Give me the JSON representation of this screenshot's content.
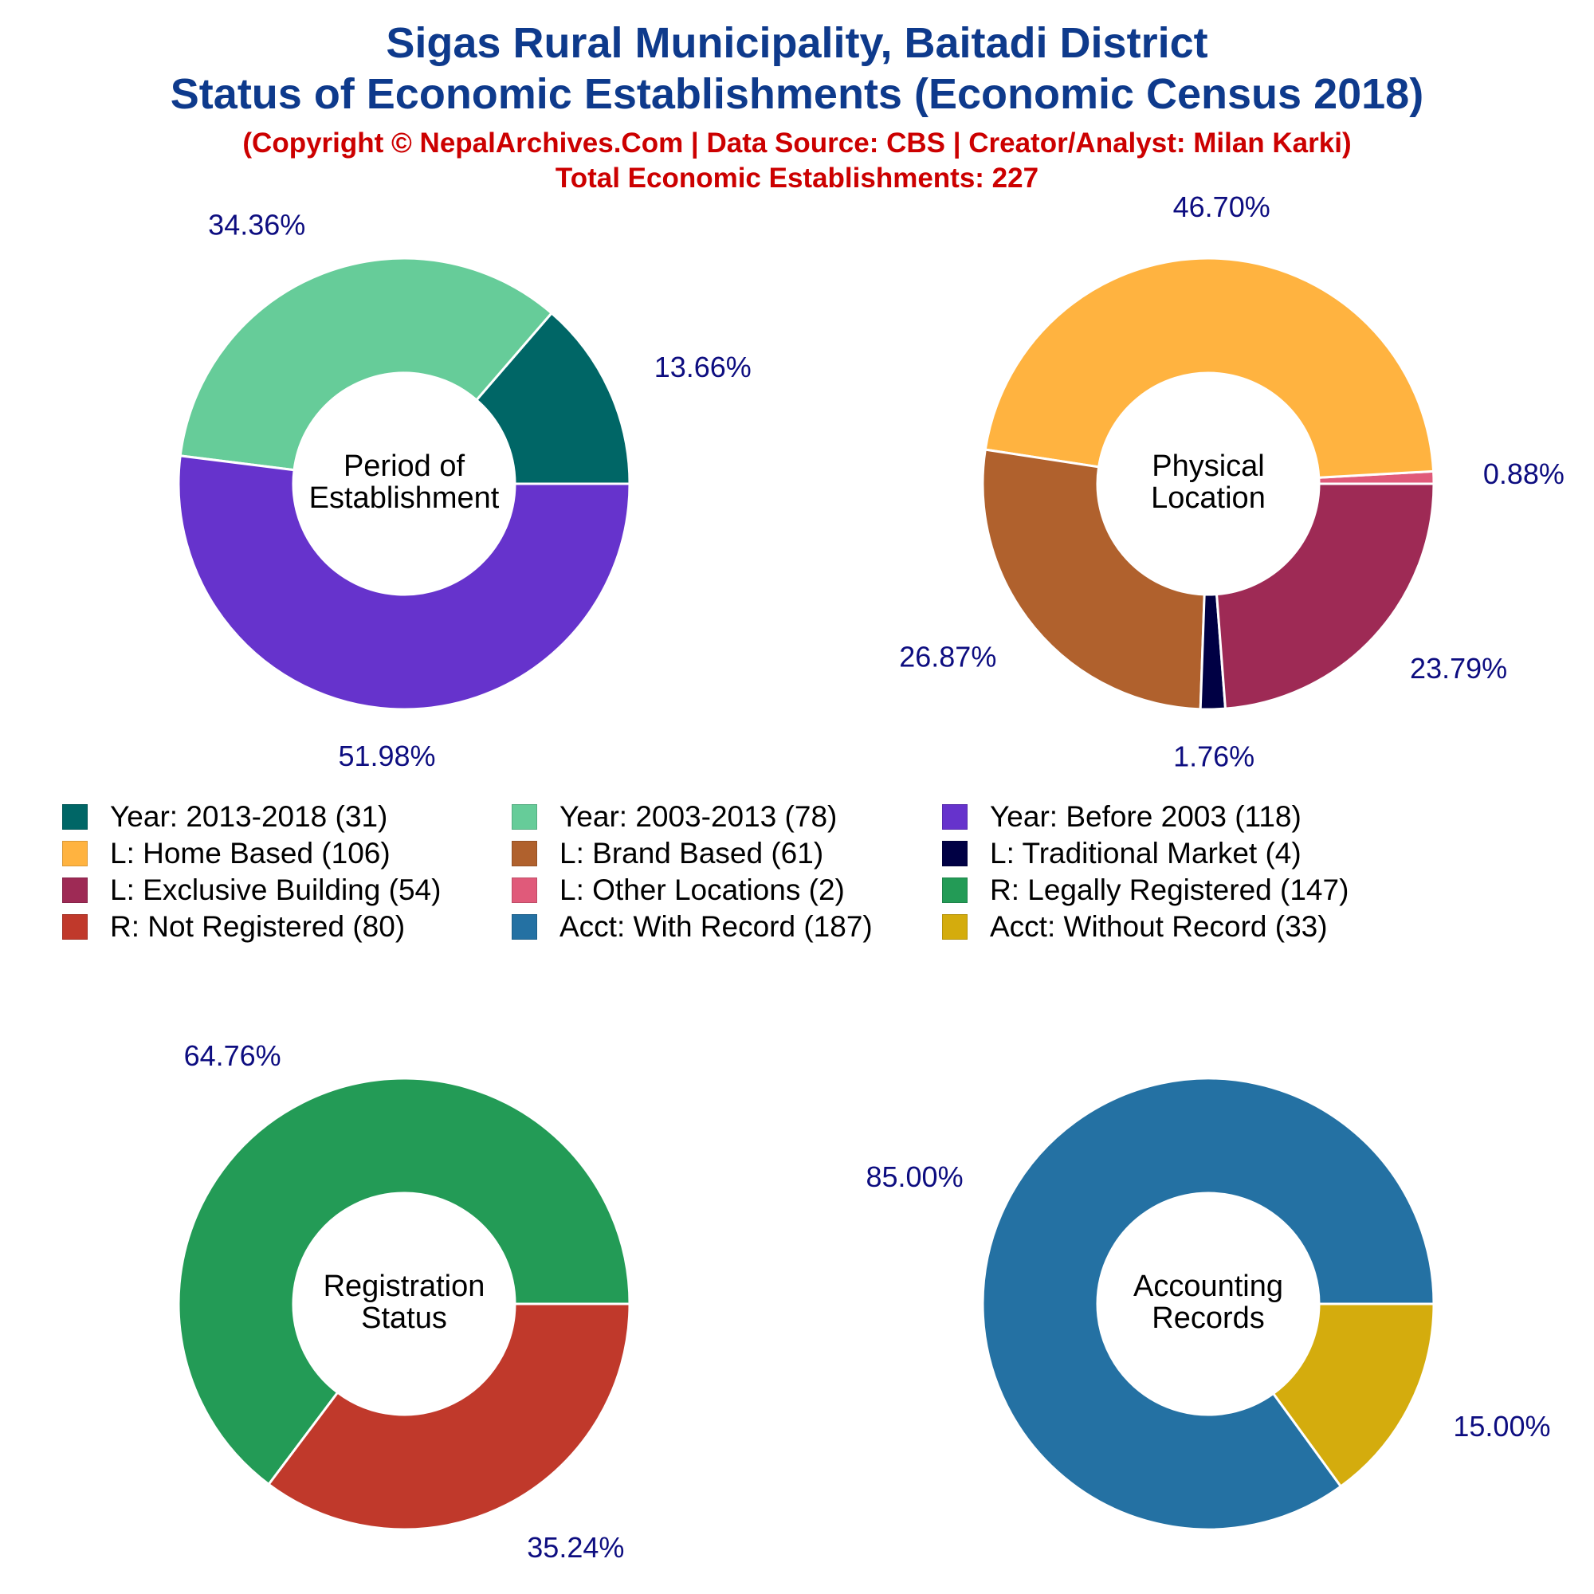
{
  "title": {
    "line1": "Sigas Rural Municipality, Baitadi District",
    "line2": "Status of Economic Establishments (Economic Census 2018)",
    "copyright": "(Copyright © NepalArchives.Com | Data Source: CBS | Creator/Analyst: Milan Karki)",
    "total": "Total Economic Establishments: 227"
  },
  "chart_data": [
    {
      "type": "pie",
      "center_label": [
        "Period of",
        "Establishment"
      ],
      "slices": [
        {
          "label": "Year: 2013-2018",
          "count": 31,
          "percent_label": "13.66%",
          "color": "#006666"
        },
        {
          "label": "Year: 2003-2013",
          "count": 78,
          "percent_label": "34.36%",
          "color": "#66cc99"
        },
        {
          "label": "Year: Before 2003",
          "count": 118,
          "percent_label": "51.98%",
          "color": "#6633cc"
        }
      ]
    },
    {
      "type": "pie",
      "center_label": [
        "Physical",
        "Location"
      ],
      "slices": [
        {
          "label": "L: Other Locations",
          "count": 2,
          "percent_label": "0.88%",
          "color": "#e05a7a"
        },
        {
          "label": "L: Home Based",
          "count": 106,
          "percent_label": "46.70%",
          "color": "#ffb340"
        },
        {
          "label": "L: Brand Based",
          "count": 61,
          "percent_label": "26.87%",
          "color": "#b0612d"
        },
        {
          "label": "L: Traditional Market",
          "count": 4,
          "percent_label": "1.76%",
          "color": "#000044"
        },
        {
          "label": "L: Exclusive Building",
          "count": 54,
          "percent_label": "23.79%",
          "color": "#9e2a55"
        }
      ]
    },
    {
      "type": "pie",
      "center_label": [
        "Registration",
        "Status"
      ],
      "slices": [
        {
          "label": "R: Legally Registered",
          "count": 147,
          "percent_label": "64.76%",
          "color": "#239b56"
        },
        {
          "label": "R: Not Registered",
          "count": 80,
          "percent_label": "35.24%",
          "color": "#c0392b"
        }
      ]
    },
    {
      "type": "pie",
      "center_label": [
        "Accounting",
        "Records"
      ],
      "slices": [
        {
          "label": "Acct: With Record",
          "count": 187,
          "percent_label": "85.00%",
          "color": "#2471a3"
        },
        {
          "label": "Acct: Without Record",
          "count": 33,
          "percent_label": "15.00%",
          "color": "#d4ac0d"
        }
      ]
    }
  ],
  "legend": [
    {
      "text": "Year: 2013-2018 (31)",
      "color": "#006666"
    },
    {
      "text": "Year: 2003-2013 (78)",
      "color": "#66cc99"
    },
    {
      "text": "Year: Before 2003 (118)",
      "color": "#6633cc"
    },
    {
      "text": "L: Home Based (106)",
      "color": "#ffb340"
    },
    {
      "text": "L: Brand Based (61)",
      "color": "#b0612d"
    },
    {
      "text": "L: Traditional Market (4)",
      "color": "#000044"
    },
    {
      "text": "L: Exclusive Building (54)",
      "color": "#9e2a55"
    },
    {
      "text": "L: Other Locations (2)",
      "color": "#e05a7a"
    },
    {
      "text": "R: Legally Registered (147)",
      "color": "#239b56"
    },
    {
      "text": "R: Not Registered (80)",
      "color": "#c0392b"
    },
    {
      "text": "Acct: With Record (187)",
      "color": "#2471a3"
    },
    {
      "text": "Acct: Without Record (33)",
      "color": "#d4ac0d"
    }
  ],
  "colors": {
    "title": "#0e3a8c",
    "subtitle": "#cc0000",
    "percent_label": "#0d0d80"
  }
}
